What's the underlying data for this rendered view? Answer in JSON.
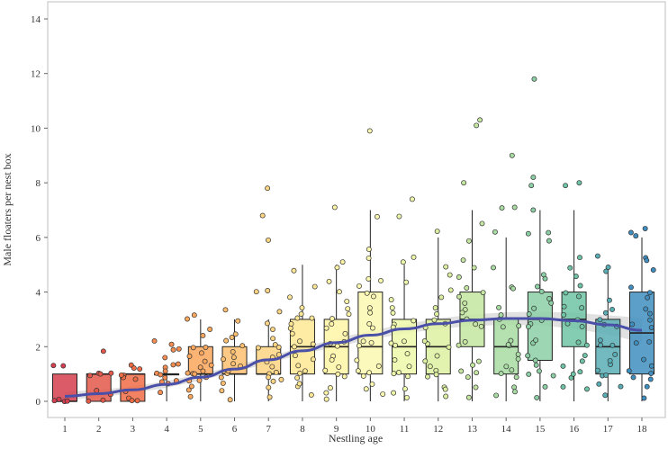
{
  "chart_data": {
    "type": "box",
    "title": "",
    "xlabel": "Nestling age",
    "ylabel": "Male floaters per nest box",
    "ylim": [
      0,
      14.5
    ],
    "yticks": [
      0,
      2,
      4,
      6,
      8,
      10,
      12,
      14
    ],
    "categories": [
      "1",
      "2",
      "3",
      "4",
      "5",
      "6",
      "7",
      "8",
      "9",
      "10",
      "11",
      "12",
      "13",
      "14",
      "15",
      "16",
      "17",
      "18"
    ],
    "colors": [
      "#d53e4f",
      "#e4584a",
      "#f06c45",
      "#f88d52",
      "#fba75d",
      "#fdbf6f",
      "#fed582",
      "#fee794",
      "#fef4a6",
      "#fbf8b0",
      "#eff8aa",
      "#ddf0a1",
      "#c4e6a0",
      "#a8dca3",
      "#8ccfa4",
      "#6fc4a5",
      "#59aeb5",
      "#3f8ec0"
    ],
    "boxes": [
      {
        "age": 1,
        "q1": 0,
        "median": 0,
        "q3": 1,
        "whisker_low": 0,
        "whisker_high": 1
      },
      {
        "age": 2,
        "q1": 0,
        "median": 1,
        "q3": 1,
        "whisker_low": 0,
        "whisker_high": 1
      },
      {
        "age": 3,
        "q1": 0,
        "median": 1,
        "q3": 1,
        "whisker_low": 0,
        "whisker_high": 1
      },
      {
        "age": 4,
        "q1": 1,
        "median": 1,
        "q3": 1,
        "whisker_low": 0,
        "whisker_high": 1
      },
      {
        "age": 5,
        "q1": 1,
        "median": 1,
        "q3": 2,
        "whisker_low": 0,
        "whisker_high": 3
      },
      {
        "age": 6,
        "q1": 1,
        "median": 1,
        "q3": 2,
        "whisker_low": 0,
        "whisker_high": 3
      },
      {
        "age": 7,
        "q1": 1,
        "median": 1,
        "q3": 2,
        "whisker_low": 0,
        "whisker_high": 3
      },
      {
        "age": 8,
        "q1": 1,
        "median": 2,
        "q3": 3,
        "whisker_low": 0,
        "whisker_high": 5
      },
      {
        "age": 9,
        "q1": 1,
        "median": 2,
        "q3": 3,
        "whisker_low": 0,
        "whisker_high": 5
      },
      {
        "age": 10,
        "q1": 1,
        "median": 2,
        "q3": 4,
        "whisker_low": 0,
        "whisker_high": 7
      },
      {
        "age": 11,
        "q1": 1,
        "median": 2,
        "q3": 3,
        "whisker_low": 0,
        "whisker_high": 5
      },
      {
        "age": 12,
        "q1": 1,
        "median": 2,
        "q3": 3,
        "whisker_low": 0,
        "whisker_high": 6
      },
      {
        "age": 13,
        "q1": 2,
        "median": 3,
        "q3": 4,
        "whisker_low": 0,
        "whisker_high": 7
      },
      {
        "age": 14,
        "q1": 1,
        "median": 2,
        "q3": 3,
        "whisker_low": 0,
        "whisker_high": 6
      },
      {
        "age": 15,
        "q1": 1.5,
        "median": 3,
        "q3": 4,
        "whisker_low": 0,
        "whisker_high": 7
      },
      {
        "age": 16,
        "q1": 2,
        "median": 3,
        "q3": 4,
        "whisker_low": 0,
        "whisker_high": 7
      },
      {
        "age": 17,
        "q1": 1,
        "median": 2,
        "q3": 3,
        "whisker_low": 0,
        "whisker_high": 5
      },
      {
        "age": 18,
        "q1": 1,
        "median": 2.5,
        "q3": 4,
        "whisker_low": 0,
        "whisker_high": 6
      }
    ],
    "outliers": [
      {
        "age": 7,
        "value": 7.8
      },
      {
        "age": 7,
        "value": 6.8
      },
      {
        "age": 7,
        "value": 5.9
      },
      {
        "age": 9,
        "value": 7.1
      },
      {
        "age": 10,
        "value": 9.9
      },
      {
        "age": 11,
        "value": 7.4
      },
      {
        "age": 13,
        "value": 10.1
      },
      {
        "age": 13,
        "value": 10.3
      },
      {
        "age": 13,
        "value": 8.0
      },
      {
        "age": 14,
        "value": 9.0
      },
      {
        "age": 14,
        "value": 7.1
      },
      {
        "age": 15,
        "value": 11.8
      },
      {
        "age": 15,
        "value": 8.2
      },
      {
        "age": 15,
        "value": 7.9
      },
      {
        "age": 16,
        "value": 8.0
      },
      {
        "age": 16,
        "value": 7.9
      }
    ],
    "jitter_points": {
      "1": [
        0,
        0,
        1.3,
        1.35,
        0,
        0.1
      ],
      "2": [
        0,
        1,
        1.8,
        1,
        0.9,
        0.3,
        0,
        1,
        0.4
      ],
      "3": [
        0,
        1,
        1.3,
        1.2,
        0.9,
        0.1,
        1,
        0.4,
        0,
        0.8,
        1.2
      ],
      "4": [
        1,
        1.2,
        2.2,
        2.1,
        1.9,
        1.6,
        0.9,
        1.1,
        0.3,
        1.3,
        1,
        0.8,
        1.4,
        1.9,
        0.6,
        0.7
      ],
      "5": [
        1,
        2,
        3.2,
        3,
        2.4,
        1.7,
        0.8,
        1.1,
        0.2,
        1.3,
        1,
        0.9,
        1.5,
        2,
        0.5,
        0.7,
        1.8,
        2.6,
        1.2,
        1.0,
        0.4
      ],
      "6": [
        1,
        2,
        3.3,
        2.9,
        2.3,
        1.6,
        0.9,
        1.4,
        0.1,
        1.3,
        1.1,
        0.7,
        1.5,
        2.2,
        0.4,
        1.8,
        2.5
      ],
      "7": [
        1,
        2,
        2.3,
        3.3,
        2.9,
        1.7,
        0.9,
        1.1,
        0.2,
        1.3,
        1.4,
        0.8,
        1.6,
        2.1,
        0.5,
        2.0,
        4.0,
        4.1,
        2.6,
        0.7
      ],
      "8": [
        2,
        3,
        4.2,
        3.8,
        4.8,
        1.7,
        0.9,
        1.1,
        0.2,
        1.3,
        2.1,
        2.8,
        3.4,
        2.2,
        0.5,
        2.7,
        3.2,
        1.5,
        1.0,
        0.6,
        2.5,
        3.0
      ],
      "9": [
        2,
        3,
        5.1,
        4.4,
        3.7,
        1.7,
        0.9,
        1.1,
        0.1,
        1.3,
        2.1,
        2.8,
        3.4,
        2.2,
        0.5,
        2.7,
        3.2,
        1.5,
        1.0,
        0.3,
        2.5,
        4.9,
        4.0
      ],
      "10": [
        2,
        4,
        6.8,
        5.6,
        5.2,
        4.4,
        0.9,
        1.1,
        0.5,
        1.3,
        2.1,
        2.8,
        3.4,
        2.2,
        0.6,
        2.7,
        3.2,
        1.5,
        1.0,
        3.8,
        4.2,
        4.5,
        0.3
      ],
      "11": [
        2,
        3,
        5.3,
        4.4,
        3.7,
        1.7,
        0.9,
        1.1,
        0.1,
        1.3,
        2.1,
        2.8,
        3.4,
        2.2,
        0.5,
        2.7,
        3.2,
        1.5,
        1.0,
        0.3,
        6.8,
        5.1
      ],
      "12": [
        2,
        3,
        6.2,
        4.9,
        3.8,
        1.7,
        0.9,
        1.1,
        0.2,
        1.3,
        2.1,
        2.8,
        3.4,
        2.2,
        0.5,
        2.7,
        3.2,
        1.5,
        1.0,
        0.4,
        4.1,
        4.6
      ],
      "13": [
        3,
        4,
        6.5,
        5.9,
        5.2,
        4.9,
        0.9,
        1.1,
        0.1,
        1.3,
        2.1,
        2.8,
        3.4,
        2.2,
        0.5,
        2.7,
        3.2,
        1.5,
        1.0,
        3.8,
        4.2,
        4.5,
        3.6
      ],
      "14": [
        2,
        3,
        6.2,
        4.9,
        4.2,
        1.7,
        0.9,
        1.1,
        0.2,
        1.3,
        2.1,
        2.8,
        3.4,
        2.2,
        0.5,
        2.7,
        3.2,
        1.5,
        1.0,
        0.4,
        4.1,
        7.1
      ],
      "15": [
        3,
        4,
        6.2,
        5.9,
        4.5,
        1.7,
        0.9,
        1.1,
        0.1,
        1.3,
        2.1,
        2.8,
        3.4,
        2.2,
        0.5,
        2.7,
        3.2,
        1.5,
        1.0,
        3.8,
        4.2,
        4.6,
        3.6,
        7.0,
        6.1
      ],
      "16": [
        3,
        4,
        5.3,
        4.9,
        4.6,
        1.7,
        0.9,
        1.1,
        0.4,
        1.3,
        2.1,
        2.8,
        3.4,
        2.2,
        0.5,
        2.7,
        3.2,
        1.5,
        1.0,
        3.8,
        4.2,
        3.5
      ],
      "17": [
        2,
        3,
        5.3,
        4.8,
        3.7,
        1.7,
        0.9,
        1.1,
        0.2,
        1.3,
        2.1,
        2.8,
        3.4,
        2.2,
        0.5,
        2.7,
        3.2,
        1.5,
        1.0,
        0.6,
        4.9
      ],
      "18": [
        3,
        4,
        6.2,
        6.1,
        5.3,
        5.2,
        0.9,
        1.1,
        0.1,
        1.3,
        2.1,
        2.8,
        3.4,
        2.2,
        0.5,
        2.7,
        3.2,
        1.5,
        1.0,
        3.8,
        4.2,
        4.8,
        0.8,
        6.3
      ]
    },
    "smooth_line": {
      "color": "#4a4fa8",
      "band_color": "#c9c9c9",
      "x": [
        1,
        2,
        3,
        4,
        5,
        6,
        7,
        8,
        9,
        10,
        11,
        12,
        13,
        14,
        15,
        16,
        17,
        18
      ],
      "y": [
        0.18,
        0.28,
        0.42,
        0.62,
        0.88,
        1.18,
        1.52,
        1.85,
        2.15,
        2.42,
        2.65,
        2.84,
        2.97,
        3.03,
        3.03,
        2.95,
        2.8,
        2.6
      ],
      "band_low": [
        0.05,
        0.15,
        0.3,
        0.5,
        0.76,
        1.06,
        1.4,
        1.72,
        2.0,
        2.26,
        2.48,
        2.65,
        2.76,
        2.8,
        2.78,
        2.66,
        2.45,
        2.15
      ],
      "band_high": [
        0.35,
        0.42,
        0.55,
        0.74,
        1.0,
        1.3,
        1.64,
        1.98,
        2.3,
        2.58,
        2.82,
        3.03,
        3.18,
        3.26,
        3.28,
        3.24,
        3.15,
        3.05
      ]
    }
  }
}
